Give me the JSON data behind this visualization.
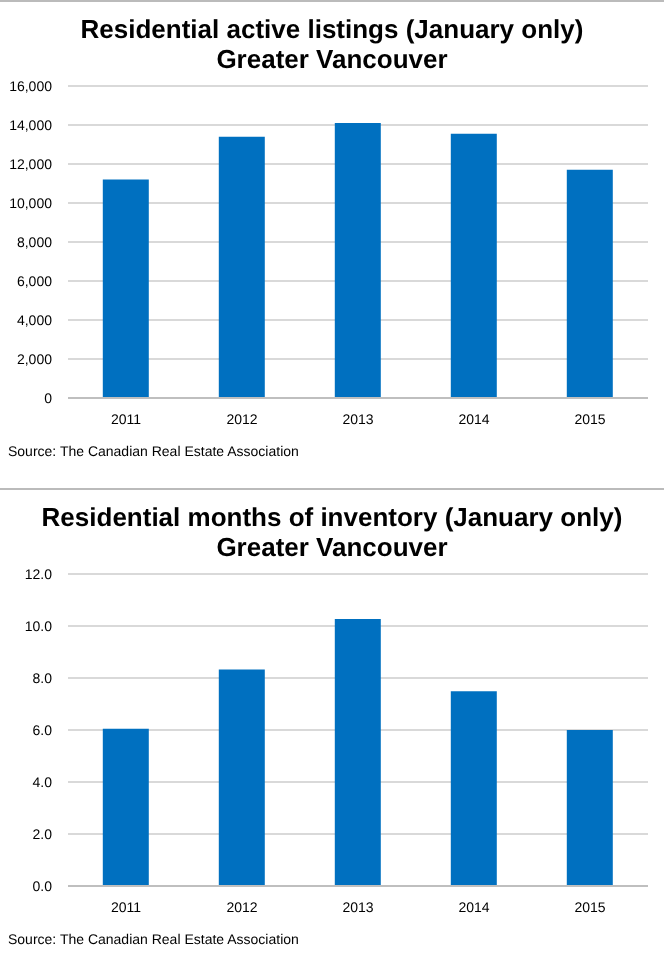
{
  "chart_data": [
    {
      "type": "bar",
      "title": "Residential active listings (January only)\nGreater Vancouver",
      "categories": [
        "2011",
        "2012",
        "2013",
        "2014",
        "2015"
      ],
      "values": [
        11200,
        13400,
        14100,
        13550,
        11700
      ],
      "color": "#0070c0",
      "ylim": [
        0,
        16000
      ],
      "yticks": [
        {
          "value": 0,
          "label": "0"
        },
        {
          "value": 2000,
          "label": "2,000"
        },
        {
          "value": 4000,
          "label": "4,000"
        },
        {
          "value": 6000,
          "label": "6,000"
        },
        {
          "value": 8000,
          "label": "8,000"
        },
        {
          "value": 10000,
          "label": "10,000"
        },
        {
          "value": 12000,
          "label": "12,000"
        },
        {
          "value": 14000,
          "label": "14,000"
        },
        {
          "value": 16000,
          "label": "16,000"
        }
      ],
      "grid": "y",
      "annotations": [
        "Source: The Canadian Real Estate Association"
      ]
    },
    {
      "type": "bar",
      "title": "Residential months of inventory (January only)\nGreater Vancouver",
      "categories": [
        "2011",
        "2012",
        "2013",
        "2014",
        "2015"
      ],
      "values": [
        6.05,
        8.33,
        10.27,
        7.49,
        6.0
      ],
      "color": "#0070c0",
      "ylim": [
        0,
        12
      ],
      "yticks": [
        {
          "value": 0,
          "label": "0.0"
        },
        {
          "value": 2,
          "label": "2.0"
        },
        {
          "value": 4,
          "label": "4.0"
        },
        {
          "value": 6,
          "label": "6.0"
        },
        {
          "value": 8,
          "label": "8.0"
        },
        {
          "value": 10,
          "label": "10.0"
        },
        {
          "value": 12,
          "label": "12.0"
        }
      ],
      "grid": "y",
      "annotations": [
        "Source: The Canadian Real Estate Association"
      ]
    }
  ]
}
